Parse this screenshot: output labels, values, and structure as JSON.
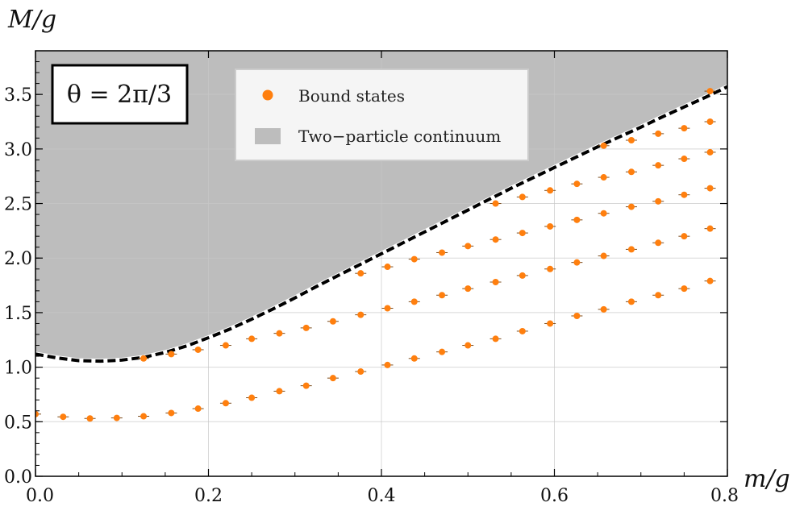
{
  "chart_data": {
    "type": "scatter",
    "title": "",
    "xlabel": "m/g",
    "ylabel": "M/g",
    "xlim": [
      0,
      0.8
    ],
    "ylim": [
      0,
      3.9
    ],
    "x_ticks": [
      "0.0",
      "0.2",
      "0.4",
      "0.6",
      "0.8"
    ],
    "y_ticks": [
      "0.0",
      "0.5",
      "1.0",
      "1.5",
      "2.0",
      "2.5",
      "3.0",
      "3.5"
    ],
    "grid": true,
    "legend_position": "top-center",
    "annotation": "θ = 2π/3",
    "colors": {
      "points": "#ff7f0e",
      "continuum": "#bdbdbd",
      "threshold": "#000000"
    },
    "continuum": {
      "name": "Two−particle continuum",
      "x": [
        0.0,
        0.025,
        0.05,
        0.075,
        0.1,
        0.125,
        0.15,
        0.175,
        0.2,
        0.225,
        0.25,
        0.275,
        0.3,
        0.325,
        0.35,
        0.375,
        0.4,
        0.425,
        0.45,
        0.475,
        0.5,
        0.525,
        0.55,
        0.575,
        0.6,
        0.625,
        0.65,
        0.675,
        0.7,
        0.725,
        0.75,
        0.775,
        0.8
      ],
      "lower": [
        1.12,
        1.085,
        1.06,
        1.055,
        1.065,
        1.09,
        1.135,
        1.195,
        1.27,
        1.35,
        1.44,
        1.535,
        1.635,
        1.74,
        1.84,
        1.94,
        2.04,
        2.14,
        2.24,
        2.34,
        2.44,
        2.54,
        2.64,
        2.735,
        2.83,
        2.925,
        3.02,
        3.11,
        3.2,
        3.295,
        3.385,
        3.475,
        3.57
      ]
    },
    "series": [
      {
        "name": "Bound states",
        "x": [
          0.0,
          0.032,
          0.063,
          0.094,
          0.125,
          0.157,
          0.188
        ],
        "y": [
          0.57,
          0.545,
          0.53,
          0.535,
          0.55,
          0.58,
          0.62
        ]
      },
      {
        "x": [
          0.22,
          0.25,
          0.282,
          0.313,
          0.344,
          0.376,
          0.407,
          0.438,
          0.47,
          0.5,
          0.532,
          0.563,
          0.595,
          0.626,
          0.657,
          0.689,
          0.72,
          0.75,
          0.78
        ],
        "y": [
          0.67,
          0.72,
          0.78,
          0.83,
          0.9,
          0.96,
          1.02,
          1.08,
          1.14,
          1.2,
          1.26,
          1.33,
          1.4,
          1.47,
          1.53,
          1.6,
          1.66,
          1.72,
          1.79
        ]
      },
      {
        "x": [
          0.125,
          0.157,
          0.188,
          0.22,
          0.25,
          0.282,
          0.313,
          0.344,
          0.376,
          0.407,
          0.438,
          0.47,
          0.5,
          0.532,
          0.563,
          0.595,
          0.626,
          0.657,
          0.689,
          0.72,
          0.75,
          0.78
        ],
        "y": [
          1.08,
          1.12,
          1.16,
          1.2,
          1.26,
          1.31,
          1.36,
          1.42,
          1.48,
          1.54,
          1.6,
          1.66,
          1.72,
          1.78,
          1.84,
          1.9,
          1.96,
          2.02,
          2.08,
          2.14,
          2.2,
          2.27
        ]
      },
      {
        "x": [
          0.376,
          0.407,
          0.438,
          0.47,
          0.5,
          0.532,
          0.563,
          0.595,
          0.626,
          0.657,
          0.689,
          0.72,
          0.75,
          0.78
        ],
        "y": [
          1.86,
          1.92,
          1.99,
          2.05,
          2.11,
          2.17,
          2.23,
          2.29,
          2.35,
          2.41,
          2.47,
          2.52,
          2.58,
          2.64
        ]
      },
      {
        "x": [
          0.532,
          0.563,
          0.595,
          0.626,
          0.657,
          0.689,
          0.72,
          0.75,
          0.78
        ],
        "y": [
          2.5,
          2.56,
          2.62,
          2.68,
          2.74,
          2.79,
          2.85,
          2.91,
          2.97
        ]
      },
      {
        "x": [
          0.657,
          0.689,
          0.72,
          0.75,
          0.78
        ],
        "y": [
          3.03,
          3.08,
          3.14,
          3.19,
          3.25
        ]
      },
      {
        "x": [
          0.78
        ],
        "y": [
          3.53
        ]
      }
    ]
  }
}
